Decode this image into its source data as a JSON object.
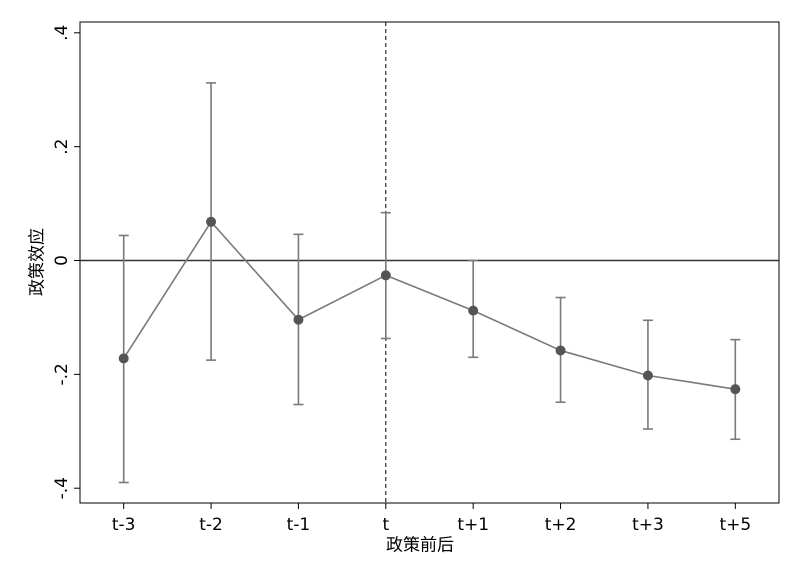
{
  "chart_data": {
    "type": "line",
    "x_label": "政策前后",
    "y_label": "政策效应",
    "categories": [
      "t-3",
      "t-2",
      "t-1",
      "t",
      "t+1",
      "t+2",
      "t+3",
      "t+5"
    ],
    "series": [
      {
        "color": "#7a7a7a",
        "values": [
          -0.172,
          0.068,
          -0.104,
          -0.026,
          -0.088,
          -0.158,
          -0.202,
          -0.226
        ],
        "ci_upper": [
          0.044,
          0.312,
          0.046,
          0.084,
          0.0,
          -0.065,
          -0.105,
          -0.139
        ],
        "ci_lower": [
          -0.39,
          -0.175,
          -0.253,
          -0.137,
          -0.17,
          -0.249,
          -0.296,
          -0.314
        ]
      }
    ],
    "ylim": [
      -0.426,
      0.419
    ],
    "yticks": [
      {
        "value": -0.4,
        "label": "-.4"
      },
      {
        "value": -0.2,
        "label": "-.2"
      },
      0,
      {
        "value": 0.2,
        "label": ".2"
      },
      {
        "value": 0.4,
        "label": ".4"
      }
    ],
    "hline": 0,
    "vline": "t"
  }
}
